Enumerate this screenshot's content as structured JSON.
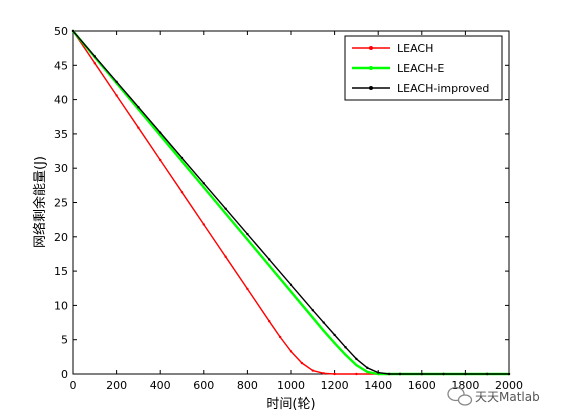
{
  "chart_data": {
    "type": "line",
    "title": "",
    "xlabel": "时间(轮)",
    "ylabel": "网络剩余能量(J)",
    "xlim": [
      0,
      2000
    ],
    "ylim": [
      0,
      50
    ],
    "xticks": [
      0,
      200,
      400,
      600,
      800,
      1000,
      1200,
      1400,
      1600,
      1800,
      2000
    ],
    "yticks": [
      0,
      5,
      10,
      15,
      20,
      25,
      30,
      35,
      40,
      45,
      50
    ],
    "grid": false,
    "legend_position": "top-right",
    "series": [
      {
        "name": "LEACH",
        "color": "#ff0000",
        "x": [
          0,
          100,
          200,
          300,
          400,
          500,
          600,
          700,
          800,
          900,
          950,
          1000,
          1050,
          1100,
          1150,
          1200,
          1300,
          1400,
          1500,
          1600,
          1700,
          1800,
          1900,
          2000
        ],
        "y": [
          50,
          45.3,
          40.6,
          35.9,
          31.2,
          26.5,
          21.8,
          17.1,
          12.4,
          7.7,
          5.4,
          3.3,
          1.6,
          0.5,
          0.1,
          0,
          0,
          0,
          0,
          0,
          0,
          0,
          0,
          0
        ]
      },
      {
        "name": "LEACH-E",
        "color": "#00ff00",
        "x": [
          0,
          100,
          200,
          300,
          400,
          500,
          600,
          700,
          800,
          900,
          1000,
          1100,
          1150,
          1200,
          1250,
          1300,
          1350,
          1400,
          1500,
          1600,
          1700,
          1800,
          1900,
          2000
        ],
        "y": [
          50,
          46.2,
          42.4,
          38.6,
          34.8,
          31.0,
          27.2,
          23.4,
          19.6,
          15.8,
          12.0,
          8.2,
          6.3,
          4.5,
          2.8,
          1.3,
          0.3,
          0,
          0,
          0,
          0,
          0,
          0,
          0
        ]
      },
      {
        "name": "LEACH-improved",
        "color": "#000000",
        "x": [
          0,
          100,
          200,
          300,
          400,
          500,
          600,
          700,
          800,
          900,
          1000,
          1100,
          1150,
          1200,
          1250,
          1300,
          1350,
          1400,
          1450,
          1500,
          1600,
          1700,
          1800,
          1900,
          2000
        ],
        "y": [
          50,
          46.3,
          42.6,
          38.9,
          35.2,
          31.5,
          27.8,
          24.1,
          20.4,
          16.7,
          13.0,
          9.3,
          7.5,
          5.7,
          3.9,
          2.2,
          0.9,
          0.2,
          0,
          0,
          0,
          0,
          0,
          0,
          0
        ]
      }
    ]
  },
  "watermark": {
    "text": "天天Matlab",
    "icon": "wechat-icon"
  }
}
